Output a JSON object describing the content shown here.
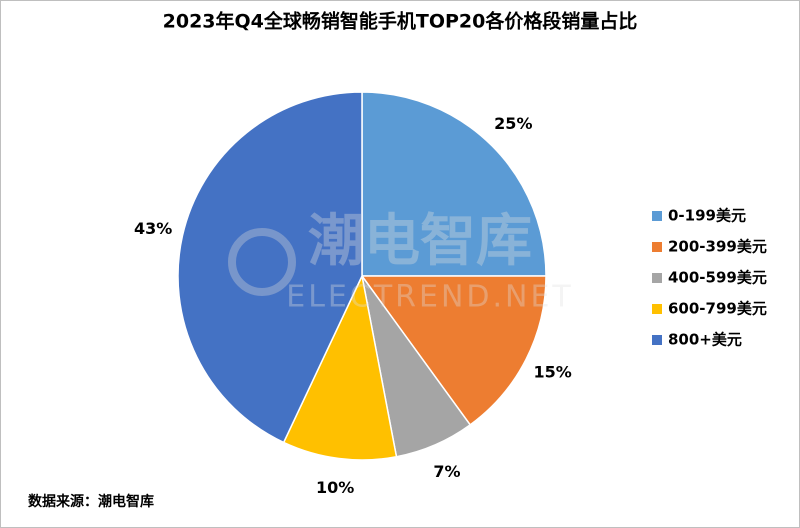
{
  "chart_data": {
    "type": "pie",
    "title": "2023年Q4全球畅销智能手机TOP20各价格段销量占比",
    "categories": [
      "0-199美元",
      "200-399美元",
      "400-599美元",
      "600-799美元",
      "800+美元"
    ],
    "values": [
      25,
      15,
      7,
      10,
      43
    ],
    "value_labels": [
      "25%",
      "15%",
      "7%",
      "10%",
      "43%"
    ],
    "colors": [
      "#5b9bd5",
      "#ed7d31",
      "#a5a5a5",
      "#ffc000",
      "#4472c4"
    ],
    "legend": "right",
    "source": "数据来源：潮电智库",
    "watermark": "潮电智库",
    "watermark_sub": "ELECTREND.NET"
  }
}
